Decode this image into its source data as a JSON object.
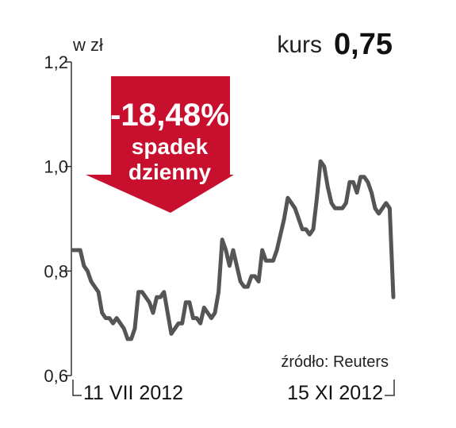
{
  "header": {
    "unit_label": "w zł",
    "kurs_label": "kurs",
    "kurs_value": "0,75"
  },
  "badge": {
    "change": "-18,48%",
    "line1": "spadek",
    "line2": "dzienny"
  },
  "source": "źródło: Reuters",
  "colors": {
    "line": "#555555",
    "axis": "#333333",
    "badge": "#c8102e",
    "text": "#222222"
  },
  "chart_data": {
    "type": "line",
    "title": "",
    "xlabel": "",
    "ylabel": "w zł",
    "ylim": [
      0.6,
      1.2
    ],
    "y_ticks": [
      "0,6",
      "0,8",
      "1,0",
      "1,2"
    ],
    "x_tick_labels": [
      "11 VII 2012",
      "15 XI 2012"
    ],
    "grid": false,
    "legend": "none",
    "series": [
      {
        "values": [
          0.84,
          0.84,
          0.84,
          0.81,
          0.8,
          0.78,
          0.77,
          0.76,
          0.72,
          0.71,
          0.71,
          0.7,
          0.71,
          0.7,
          0.69,
          0.67,
          0.67,
          0.69,
          0.76,
          0.76,
          0.75,
          0.74,
          0.72,
          0.75,
          0.75,
          0.76,
          0.72,
          0.68,
          0.69,
          0.7,
          0.7,
          0.74,
          0.74,
          0.71,
          0.71,
          0.7,
          0.73,
          0.72,
          0.71,
          0.72,
          0.76,
          0.86,
          0.84,
          0.81,
          0.84,
          0.81,
          0.78,
          0.77,
          0.77,
          0.79,
          0.79,
          0.78,
          0.84,
          0.82,
          0.82,
          0.82,
          0.84,
          0.87,
          0.9,
          0.94,
          0.93,
          0.92,
          0.9,
          0.88,
          0.88,
          0.87,
          0.88,
          0.94,
          1.01,
          1.0,
          0.96,
          0.93,
          0.92,
          0.92,
          0.92,
          0.93,
          0.97,
          0.97,
          0.95,
          0.98,
          0.98,
          0.97,
          0.95,
          0.92,
          0.91,
          0.92,
          0.93,
          0.92,
          0.75
        ]
      }
    ]
  }
}
